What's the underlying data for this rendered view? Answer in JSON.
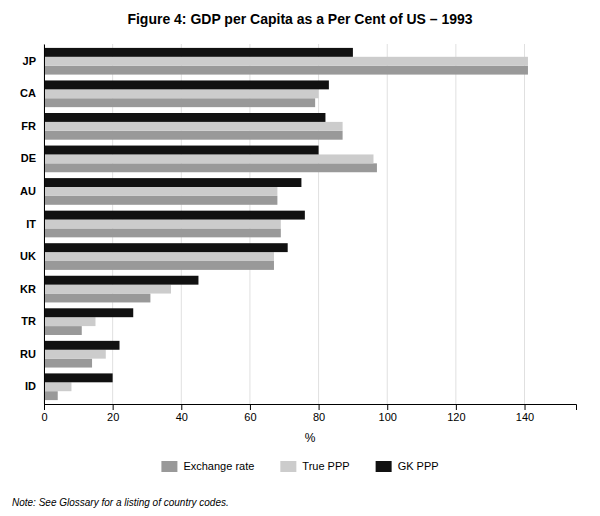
{
  "chart_data": {
    "type": "bar",
    "orientation": "horizontal",
    "title": "Figure 4: GDP per Capita as a Per Cent of US – 1993",
    "x_label": "%",
    "annotations": [
      "Note: See Glossary for a listing of country codes."
    ],
    "categories": [
      "JP",
      "CA",
      "FR",
      "DE",
      "AU",
      "IT",
      "UK",
      "KR",
      "TR",
      "RU",
      "ID"
    ],
    "series": [
      {
        "name": "Exchange rate",
        "color": "#999999",
        "values": [
          141,
          79,
          87,
          97,
          68,
          69,
          67,
          31,
          11,
          14,
          4
        ]
      },
      {
        "name": "True PPP",
        "color": "#cccccc",
        "values": [
          141,
          80,
          87,
          96,
          68,
          69,
          67,
          37,
          15,
          18,
          8
        ]
      },
      {
        "name": "GK PPP",
        "color": "#111111",
        "values": [
          90,
          83,
          82,
          80,
          75,
          76,
          71,
          45,
          26,
          22,
          20
        ]
      }
    ],
    "xlim": [
      0,
      155
    ],
    "xticks": [
      0,
      20,
      40,
      60,
      80,
      100,
      120,
      140
    ],
    "grid": true,
    "legend": "bottom"
  }
}
